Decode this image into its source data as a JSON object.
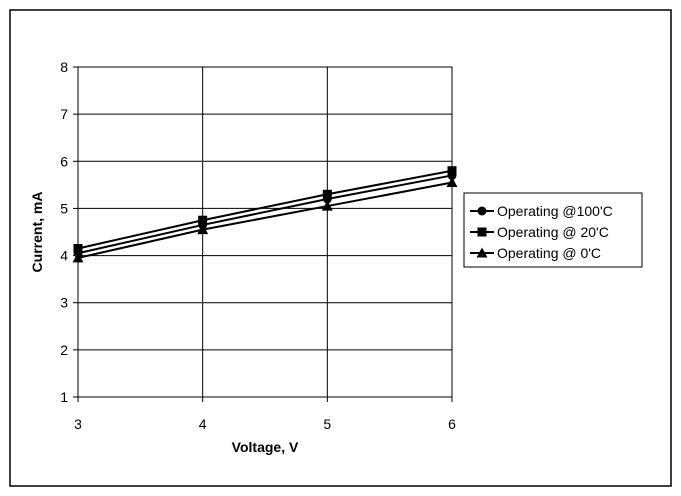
{
  "chart_data": {
    "type": "line",
    "title": "",
    "xlabel": "Voltage, V",
    "ylabel": "Current, mA",
    "x": [
      3,
      4,
      5,
      6
    ],
    "xlim": [
      3,
      6
    ],
    "ylim": [
      1,
      8
    ],
    "xticks": [
      "3",
      "4",
      "5",
      "6"
    ],
    "yticks": [
      "1",
      "2",
      "3",
      "4",
      "5",
      "6",
      "7",
      "8"
    ],
    "grid": true,
    "legend_position": "right",
    "series": [
      {
        "name": "Operating @100'C",
        "marker": "circle",
        "values": [
          4.05,
          4.65,
          5.2,
          5.7
        ]
      },
      {
        "name": "Operating @ 20'C",
        "marker": "square",
        "values": [
          4.15,
          4.75,
          5.3,
          5.8
        ]
      },
      {
        "name": "Operating @ 0'C",
        "marker": "triangle",
        "values": [
          3.95,
          4.55,
          5.05,
          5.55
        ]
      }
    ],
    "colors": {
      "line": "#000000",
      "plot_background": "#ffffff"
    }
  }
}
